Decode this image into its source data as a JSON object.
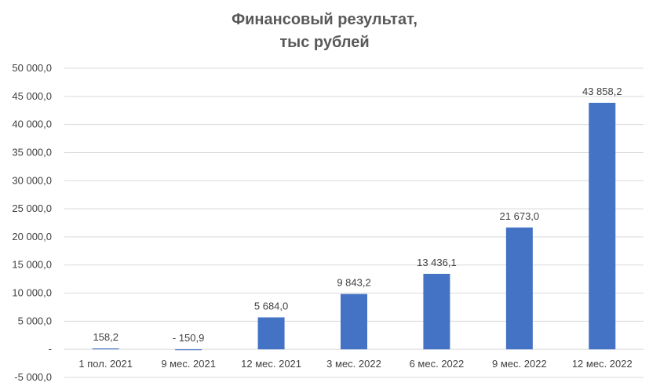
{
  "chart_data": {
    "type": "bar",
    "title_lines": [
      "Финансовый результат,",
      "тыс рублей"
    ],
    "categories": [
      "1 пол. 2021",
      "9 мес. 2021",
      "12 мес. 2021",
      "3 мес. 2022",
      "6 мес. 2022",
      "9 мес. 2022",
      "12 мес. 2022"
    ],
    "values": [
      158.2,
      -150.9,
      5684.0,
      9843.2,
      13436.1,
      21673.0,
      43858.2
    ],
    "data_labels": [
      "158,2",
      "- 150,9",
      "5 684,0",
      "9 843,2",
      "13 436,1",
      "21 673,0",
      "43 858,2"
    ],
    "ylim": [
      -5000,
      50000
    ],
    "y_ticks": [
      50000,
      45000,
      40000,
      35000,
      30000,
      25000,
      20000,
      15000,
      10000,
      5000,
      0,
      -5000
    ],
    "y_tick_labels": [
      "50 000,0",
      "45 000,0",
      "40 000,0",
      "35 000,0",
      "30 000,0",
      "25 000,0",
      "20 000,0",
      "15 000,0",
      "10 000,0",
      "5 000,0",
      "-",
      "-5 000,0"
    ],
    "grid": true,
    "legend": "none",
    "bar_color": "#4472C4",
    "grid_color": "#D9D9D9",
    "text_color": "#404040",
    "title_color": "#595959"
  }
}
